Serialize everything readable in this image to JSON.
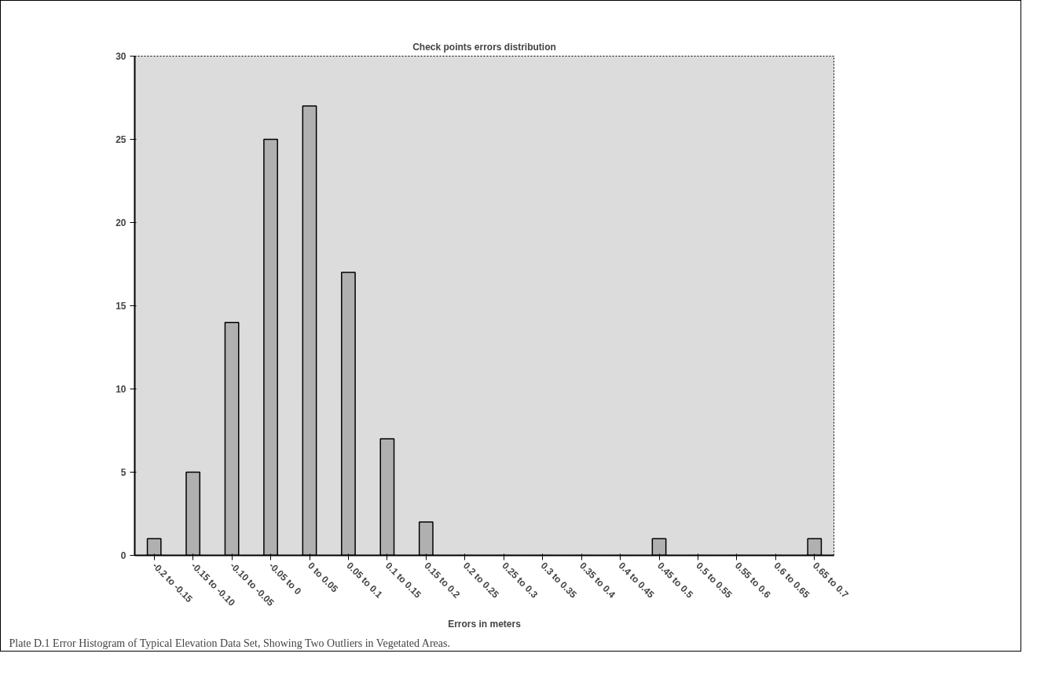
{
  "chart_data": {
    "type": "bar",
    "title": "Check points errors distribution",
    "xlabel": "Errors in meters",
    "categories": [
      "-0.2 to -0.15",
      "-0.15 to -0.10",
      "-0.10 to -0.05",
      "-0.05 to 0",
      "0 to 0.05",
      "0.05 to 0.1",
      "0.1 to 0.15",
      "0.15 to 0.2",
      "0.2 to 0.25",
      "0.25 to 0.3",
      "0.3 to 0.35",
      "0.35 to 0.4",
      "0.4 to 0.45",
      "0.45 to 0.5",
      "0.5 to 0.55",
      "0.55 to 0.6",
      "0.6 to 0.65",
      "0.65 to 0.7"
    ],
    "values": [
      1,
      5,
      14,
      25,
      27,
      17,
      7,
      2,
      0,
      0,
      0,
      0,
      0,
      1,
      0,
      0,
      0,
      1
    ],
    "color": "#b0b0b0",
    "ylim": [
      0,
      30
    ],
    "yticks": [
      0,
      5,
      10,
      15,
      20,
      25,
      30
    ],
    "grid": false,
    "annotations": [
      "Plate D.1 Error Histogram of Typical Elevation Data Set, Showing Two Outliers in Vegetated Areas."
    ]
  }
}
